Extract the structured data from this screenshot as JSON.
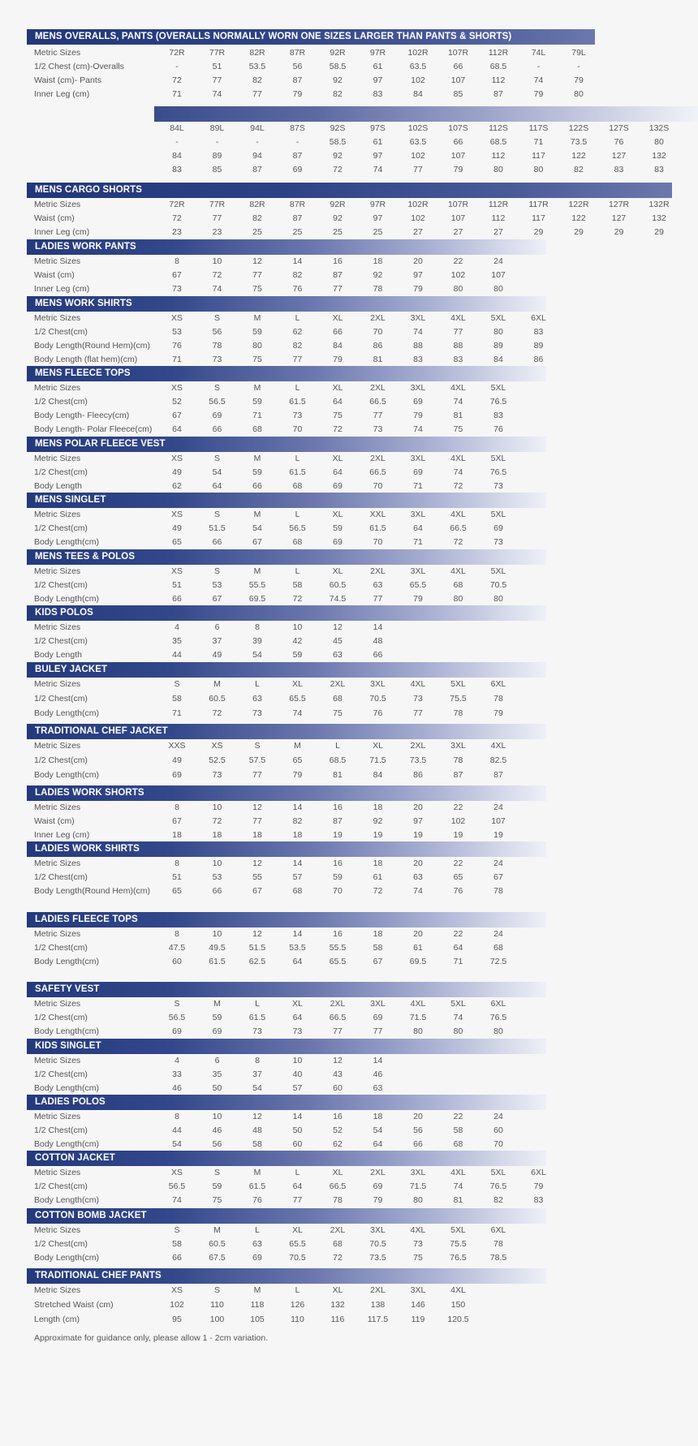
{
  "sections": [
    {
      "title": "MENS OVERALLS, PANTS (OVERALLS NORMALLY WORN ONE SIZES LARGER THAN PANTS & SHORTS)",
      "rows": [
        {
          "label": "Metric Sizes",
          "values": [
            "72R",
            "77R",
            "82R",
            "87R",
            "92R",
            "97R",
            "102R",
            "107R",
            "112R",
            "74L",
            "79L"
          ]
        },
        {
          "label": "1/2 Chest (cm)-Overalls",
          "values": [
            "-",
            "51",
            "53.5",
            "56",
            "58.5",
            "61",
            "63.5",
            "66",
            "68.5",
            "-",
            "-"
          ]
        },
        {
          "label": "Waist (cm)- Pants",
          "values": [
            "72",
            "77",
            "82",
            "87",
            "92",
            "97",
            "102",
            "107",
            "112",
            "74",
            "79"
          ]
        },
        {
          "label": "Inner Leg (cm)",
          "values": [
            "71",
            "74",
            "77",
            "79",
            "82",
            "83",
            "84",
            "85",
            "87",
            "79",
            "80"
          ]
        }
      ],
      "continuation": [
        {
          "label": "",
          "values": [
            "84L",
            "89L",
            "94L",
            "87S",
            "92S",
            "97S",
            "102S",
            "107S",
            "112S",
            "117S",
            "122S",
            "127S",
            "132S"
          ]
        },
        {
          "label": "",
          "values": [
            "-",
            "-",
            "-",
            "-",
            "58.5",
            "61",
            "63.5",
            "66",
            "68.5",
            "71",
            "73.5",
            "76",
            "80"
          ]
        },
        {
          "label": "",
          "values": [
            "84",
            "89",
            "94",
            "87",
            "92",
            "97",
            "102",
            "107",
            "112",
            "117",
            "122",
            "127",
            "132"
          ]
        },
        {
          "label": "",
          "values": [
            "83",
            "85",
            "87",
            "69",
            "72",
            "74",
            "77",
            "79",
            "80",
            "80",
            "82",
            "83",
            "83"
          ]
        }
      ]
    },
    {
      "title": "MENS CARGO SHORTS",
      "rows": [
        {
          "label": "Metric Sizes",
          "values": [
            "72R",
            "77R",
            "82R",
            "87R",
            "92R",
            "97R",
            "102R",
            "107R",
            "112R",
            "117R",
            "122R",
            "127R",
            "132R"
          ]
        },
        {
          "label": "Waist (cm)",
          "values": [
            "72",
            "77",
            "82",
            "87",
            "92",
            "97",
            "102",
            "107",
            "112",
            "117",
            "122",
            "127",
            "132"
          ]
        },
        {
          "label": "Inner Leg (cm)",
          "values": [
            "23",
            "23",
            "25",
            "25",
            "25",
            "25",
            "27",
            "27",
            "27",
            "29",
            "29",
            "29",
            "29"
          ]
        }
      ]
    },
    {
      "title": "LADIES WORK PANTS",
      "rows": [
        {
          "label": "Metric Sizes",
          "values": [
            "8",
            "10",
            "12",
            "14",
            "16",
            "18",
            "20",
            "22",
            "24"
          ]
        },
        {
          "label": "Waist (cm)",
          "values": [
            "67",
            "72",
            "77",
            "82",
            "87",
            "92",
            "97",
            "102",
            "107"
          ]
        },
        {
          "label": "Inner Leg (cm)",
          "values": [
            "73",
            "74",
            "75",
            "76",
            "77",
            "78",
            "79",
            "80",
            "80"
          ]
        }
      ]
    },
    {
      "title": "MENS WORK SHIRTS",
      "rows": [
        {
          "label": "Metric Sizes",
          "values": [
            "XS",
            "S",
            "M",
            "L",
            "XL",
            "2XL",
            "3XL",
            "4XL",
            "5XL",
            "6XL"
          ]
        },
        {
          "label": "1/2 Chest(cm)",
          "values": [
            "53",
            "56",
            "59",
            "62",
            "66",
            "70",
            "74",
            "77",
            "80",
            "83"
          ]
        },
        {
          "label": "Body Length(Round Hem)(cm)",
          "values": [
            "76",
            "78",
            "80",
            "82",
            "84",
            "86",
            "88",
            "88",
            "89",
            "89"
          ]
        },
        {
          "label": "Body Length (flat hem)(cm)",
          "values": [
            "71",
            "73",
            "75",
            "77",
            "79",
            "81",
            "83",
            "83",
            "84",
            "86"
          ]
        }
      ]
    },
    {
      "title": "MENS FLEECE TOPS",
      "rows": [
        {
          "label": "Metric Sizes",
          "values": [
            "XS",
            "S",
            "M",
            "L",
            "XL",
            "2XL",
            "3XL",
            "4XL",
            "5XL"
          ]
        },
        {
          "label": "1/2 Chest(cm)",
          "values": [
            "52",
            "56.5",
            "59",
            "61.5",
            "64",
            "66.5",
            "69",
            "74",
            "76.5"
          ]
        },
        {
          "label": "Body Length- Fleecy(cm)",
          "values": [
            "67",
            "69",
            "71",
            "73",
            "75",
            "77",
            "79",
            "81",
            "83"
          ]
        },
        {
          "label": "Body Length- Polar Fleece(cm)",
          "values": [
            "64",
            "66",
            "68",
            "70",
            "72",
            "73",
            "74",
            "75",
            "76"
          ]
        }
      ]
    },
    {
      "title": "MENS POLAR FLEECE VEST",
      "rows": [
        {
          "label": "Metric Sizes",
          "values": [
            "XS",
            "S",
            "M",
            "L",
            "XL",
            "2XL",
            "3XL",
            "4XL",
            "5XL"
          ]
        },
        {
          "label": "1/2 Chest(cm)",
          "values": [
            "49",
            "54",
            "59",
            "61.5",
            "64",
            "66.5",
            "69",
            "74",
            "76.5"
          ]
        },
        {
          "label": "Body Length",
          "values": [
            "62",
            "64",
            "66",
            "68",
            "69",
            "70",
            "71",
            "72",
            "73"
          ]
        }
      ]
    },
    {
      "title": "MENS SINGLET",
      "rows": [
        {
          "label": "Metric Sizes",
          "values": [
            "XS",
            "S",
            "M",
            "L",
            "XL",
            "XXL",
            "3XL",
            "4XL",
            "5XL"
          ]
        },
        {
          "label": "1/2 Chest(cm)",
          "values": [
            "49",
            "51.5",
            "54",
            "56.5",
            "59",
            "61.5",
            "64",
            "66.5",
            "69"
          ]
        },
        {
          "label": "Body Length(cm)",
          "values": [
            "65",
            "66",
            "67",
            "68",
            "69",
            "70",
            "71",
            "72",
            "73"
          ]
        }
      ]
    },
    {
      "title": "MENS TEES & POLOS",
      "rows": [
        {
          "label": "Metric Sizes",
          "values": [
            "XS",
            "S",
            "M",
            "L",
            "XL",
            "2XL",
            "3XL",
            "4XL",
            "5XL"
          ]
        },
        {
          "label": "1/2 Chest(cm)",
          "values": [
            "51",
            "53",
            "55.5",
            "58",
            "60.5",
            "63",
            "65.5",
            "68",
            "70.5"
          ]
        },
        {
          "label": "Body Length(cm)",
          "values": [
            "66",
            "67",
            "69.5",
            "72",
            "74.5",
            "77",
            "79",
            "80",
            "80"
          ]
        }
      ]
    },
    {
      "title": "KIDS POLOS",
      "rows": [
        {
          "label": "Metric Sizes",
          "values": [
            "4",
            "6",
            "8",
            "10",
            "12",
            "14"
          ]
        },
        {
          "label": "1/2 Chest(cm)",
          "values": [
            "35",
            "37",
            "39",
            "42",
            "45",
            "48"
          ]
        },
        {
          "label": "Body Length",
          "values": [
            "44",
            "49",
            "54",
            "59",
            "63",
            "66"
          ]
        }
      ]
    },
    {
      "title": "BULEY JACKET",
      "rows": [
        {
          "label": "Metric Sizes",
          "values": [
            "S",
            "M",
            "L",
            "XL",
            "2XL",
            "3XL",
            "4XL",
            "5XL",
            "6XL"
          ]
        },
        {
          "label": "1/2 Chest(cm)",
          "values": [
            "58",
            "60.5",
            "63",
            "65.5",
            "68",
            "70.5",
            "73",
            "75.5",
            "78"
          ]
        },
        {
          "label": "Body Length(cm)",
          "values": [
            "71",
            "72",
            "73",
            "74",
            "75",
            "76",
            "77",
            "78",
            "79"
          ]
        }
      ]
    },
    {
      "title": "TRADITIONAL CHEF JACKET",
      "rows": [
        {
          "label": "Metric Sizes",
          "values": [
            "XXS",
            "XS",
            "S",
            "M",
            "L",
            "XL",
            "2XL",
            "3XL",
            "4XL"
          ]
        },
        {
          "label": "1/2 Chest(cm)",
          "values": [
            "49",
            "52.5",
            "57.5",
            "65",
            "68.5",
            "71.5",
            "73.5",
            "78",
            "82.5"
          ]
        },
        {
          "label": "Body Length(cm)",
          "values": [
            "69",
            "73",
            "77",
            "79",
            "81",
            "84",
            "86",
            "87",
            "87"
          ]
        }
      ]
    },
    {
      "title": "LADIES WORK SHORTS",
      "rows": [
        {
          "label": "Metric Sizes",
          "values": [
            "8",
            "10",
            "12",
            "14",
            "16",
            "18",
            "20",
            "22",
            "24"
          ]
        },
        {
          "label": "Waist (cm)",
          "values": [
            "67",
            "72",
            "77",
            "82",
            "87",
            "92",
            "97",
            "102",
            "107"
          ]
        },
        {
          "label": "Inner Leg (cm)",
          "values": [
            "18",
            "18",
            "18",
            "18",
            "19",
            "19",
            "19",
            "19",
            "19"
          ]
        }
      ]
    },
    {
      "title": "LADIES WORK SHIRTS",
      "rows": [
        {
          "label": "Metric Sizes",
          "values": [
            "8",
            "10",
            "12",
            "14",
            "16",
            "18",
            "20",
            "22",
            "24"
          ]
        },
        {
          "label": "1/2 Chest(cm)",
          "values": [
            "51",
            "53",
            "55",
            "57",
            "59",
            "61",
            "63",
            "65",
            "67"
          ]
        },
        {
          "label": "Body Length(Round Hem)(cm)",
          "values": [
            "65",
            "66",
            "67",
            "68",
            "70",
            "72",
            "74",
            "76",
            "78"
          ]
        }
      ]
    },
    {
      "title": "LADIES FLEECE TOPS",
      "rows": [
        {
          "label": "Metric Sizes",
          "values": [
            "8",
            "10",
            "12",
            "14",
            "16",
            "18",
            "20",
            "22",
            "24"
          ]
        },
        {
          "label": "1/2 Chest(cm)",
          "values": [
            "47.5",
            "49.5",
            "51.5",
            "53.5",
            "55.5",
            "58",
            "61",
            "64",
            "68"
          ]
        },
        {
          "label": "Body Length(cm)",
          "values": [
            "60",
            "61.5",
            "62.5",
            "64",
            "65.5",
            "67",
            "69.5",
            "71",
            "72.5"
          ]
        }
      ]
    },
    {
      "title": "SAFETY VEST",
      "rows": [
        {
          "label": "Metric Sizes",
          "values": [
            "S",
            "M",
            "L",
            "XL",
            "2XL",
            "3XL",
            "4XL",
            "5XL",
            "6XL"
          ]
        },
        {
          "label": "1/2 Chest(cm)",
          "values": [
            "56.5",
            "59",
            "61.5",
            "64",
            "66.5",
            "69",
            "71.5",
            "74",
            "76.5"
          ]
        },
        {
          "label": "Body Length(cm)",
          "values": [
            "69",
            "69",
            "73",
            "73",
            "77",
            "77",
            "80",
            "80",
            "80"
          ]
        }
      ]
    },
    {
      "title": "KIDS SINGLET",
      "rows": [
        {
          "label": "Metric Sizes",
          "values": [
            "4",
            "6",
            "8",
            "10",
            "12",
            "14"
          ]
        },
        {
          "label": "1/2 Chest(cm)",
          "values": [
            "33",
            "35",
            "37",
            "40",
            "43",
            "46"
          ]
        },
        {
          "label": "Body Length(cm)",
          "values": [
            "46",
            "50",
            "54",
            "57",
            "60",
            "63"
          ]
        }
      ]
    },
    {
      "title": "LADIES POLOS",
      "rows": [
        {
          "label": "Metric Sizes",
          "values": [
            "8",
            "10",
            "12",
            "14",
            "16",
            "18",
            "20",
            "22",
            "24"
          ]
        },
        {
          "label": "1/2 Chest(cm)",
          "values": [
            "44",
            "46",
            "48",
            "50",
            "52",
            "54",
            "56",
            "58",
            "60"
          ]
        },
        {
          "label": "Body Length(cm)",
          "values": [
            "54",
            "56",
            "58",
            "60",
            "62",
            "64",
            "66",
            "68",
            "70"
          ]
        }
      ]
    },
    {
      "title": "COTTON JACKET",
      "rows": [
        {
          "label": "Metric Sizes",
          "values": [
            "XS",
            "S",
            "M",
            "L",
            "XL",
            "2XL",
            "3XL",
            "4XL",
            "5XL",
            "6XL"
          ]
        },
        {
          "label": "1/2 Chest(cm)",
          "values": [
            "56.5",
            "59",
            "61.5",
            "64",
            "66.5",
            "69",
            "71.5",
            "74",
            "76.5",
            "79"
          ]
        },
        {
          "label": "Body Length(cm)",
          "values": [
            "74",
            "75",
            "76",
            "77",
            "78",
            "79",
            "80",
            "81",
            "82",
            "83"
          ]
        }
      ]
    },
    {
      "title": "COTTON BOMB JACKET",
      "rows": [
        {
          "label": "Metric Sizes",
          "values": [
            "S",
            "M",
            "L",
            "XL",
            "2XL",
            "3XL",
            "4XL",
            "5XL",
            "6XL"
          ]
        },
        {
          "label": "1/2 Chest(cm)",
          "values": [
            "58",
            "60.5",
            "63",
            "65.5",
            "68",
            "70.5",
            "73",
            "75.5",
            "78"
          ]
        },
        {
          "label": "Body Length(cm)",
          "values": [
            "66",
            "67.5",
            "69",
            "70.5",
            "72",
            "73.5",
            "75",
            "76.5",
            "78.5"
          ]
        }
      ]
    },
    {
      "title": "TRADITIONAL CHEF PANTS",
      "rows": [
        {
          "label": "Metric Sizes",
          "values": [
            "XS",
            "S",
            "M",
            "L",
            "XL",
            "2XL",
            "3XL",
            "4XL"
          ]
        },
        {
          "label": "Stretched Waist (cm)",
          "values": [
            "102",
            "110",
            "118",
            "126",
            "132",
            "138",
            "146",
            "150"
          ]
        },
        {
          "label": "Length (cm)",
          "values": [
            "95",
            "100",
            "105",
            "110",
            "116",
            "117.5",
            "119",
            "120.5"
          ]
        }
      ]
    }
  ],
  "footnote": "Approximate for guidance only, please allow 1 - 2cm variation."
}
